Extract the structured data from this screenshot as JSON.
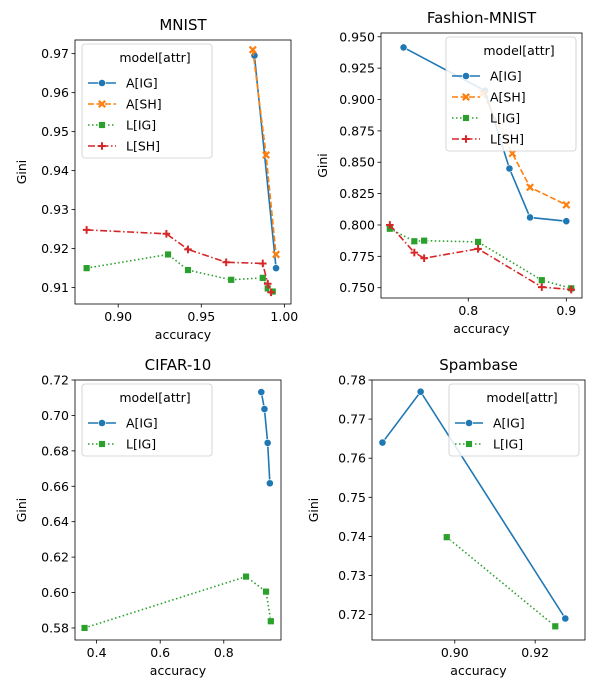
{
  "chart_data": [
    {
      "type": "line",
      "title": "MNIST",
      "xlabel": "accuracy",
      "ylabel": "Gini",
      "xlim": [
        0.874,
        1.004
      ],
      "ylim": [
        0.9058,
        0.9735
      ],
      "xticks": [
        0.9,
        0.95,
        1.0
      ],
      "xtick_labels": [
        "0.90",
        "0.95",
        "1.00"
      ],
      "yticks": [
        0.91,
        0.92,
        0.93,
        0.94,
        0.95,
        0.96,
        0.97
      ],
      "ytick_labels": [
        "0.91",
        "0.92",
        "0.93",
        "0.94",
        "0.95",
        "0.96",
        "0.97"
      ],
      "legend": {
        "title": "model[attr]",
        "position": "upper-left"
      },
      "series": [
        {
          "name": "A[IG]",
          "key": "AIG",
          "points": [
            [
              0.982,
              0.9695
            ],
            [
              0.995,
              0.915
            ]
          ]
        },
        {
          "name": "A[SH]",
          "key": "ASH",
          "points": [
            [
              0.981,
              0.971
            ],
            [
              0.989,
              0.944
            ],
            [
              0.995,
              0.9185
            ]
          ]
        },
        {
          "name": "L[IG]",
          "key": "LIG",
          "points": [
            [
              0.881,
              0.915
            ],
            [
              0.93,
              0.9185
            ],
            [
              0.942,
              0.9145
            ],
            [
              0.968,
              0.912
            ],
            [
              0.987,
              0.9125
            ],
            [
              0.99,
              0.9098
            ],
            [
              0.993,
              0.909
            ]
          ]
        },
        {
          "name": "L[SH]",
          "key": "LSH",
          "points": [
            [
              0.881,
              0.9248
            ],
            [
              0.929,
              0.9238
            ],
            [
              0.942,
              0.9198
            ],
            [
              0.965,
              0.9165
            ],
            [
              0.987,
              0.9162
            ],
            [
              0.99,
              0.911
            ],
            [
              0.992,
              0.9088
            ]
          ]
        }
      ]
    },
    {
      "type": "line",
      "title": "Fashion-MNIST",
      "xlabel": "accuracy",
      "ylabel": "Gini",
      "xlim": [
        0.711,
        0.916
      ],
      "ylim": [
        0.7418,
        0.953
      ],
      "xticks": [
        0.8,
        0.9
      ],
      "xtick_labels": [
        "0.8",
        "0.9"
      ],
      "yticks": [
        0.75,
        0.775,
        0.8,
        0.825,
        0.85,
        0.875,
        0.9,
        0.925,
        0.95
      ],
      "ytick_labels": [
        "0.750",
        "0.775",
        "0.800",
        "0.825",
        "0.850",
        "0.875",
        "0.900",
        "0.925",
        "0.950"
      ],
      "legend": {
        "title": "model[attr]",
        "position": "upper-right"
      },
      "series": [
        {
          "name": "A[IG]",
          "key": "AIG",
          "points": [
            [
              0.734,
              0.9415
            ],
            [
              0.817,
              0.907
            ],
            [
              0.842,
              0.845
            ],
            [
              0.863,
              0.806
            ],
            [
              0.9,
              0.803
            ]
          ]
        },
        {
          "name": "A[SH]",
          "key": "ASH",
          "points": [
            [
              0.815,
              0.905
            ],
            [
              0.845,
              0.857
            ],
            [
              0.863,
              0.83
            ],
            [
              0.9,
              0.816
            ]
          ]
        },
        {
          "name": "L[IG]",
          "key": "LIG",
          "points": [
            [
              0.72,
              0.797
            ],
            [
              0.745,
              0.787
            ],
            [
              0.755,
              0.7875
            ],
            [
              0.81,
              0.7865
            ],
            [
              0.875,
              0.756
            ],
            [
              0.905,
              0.7495
            ]
          ]
        },
        {
          "name": "L[SH]",
          "key": "LSH",
          "points": [
            [
              0.72,
              0.8
            ],
            [
              0.745,
              0.778
            ],
            [
              0.755,
              0.7735
            ],
            [
              0.81,
              0.781
            ],
            [
              0.875,
              0.7505
            ],
            [
              0.905,
              0.7485
            ]
          ]
        }
      ]
    },
    {
      "type": "line",
      "title": "CIFAR-10",
      "xlabel": "accuracy",
      "ylabel": "Gini",
      "xlim": [
        0.332,
        0.98
      ],
      "ylim": [
        0.5732,
        0.72
      ],
      "xticks": [
        0.4,
        0.6,
        0.8
      ],
      "xtick_labels": [
        "0.4",
        "0.6",
        "0.8"
      ],
      "yticks": [
        0.58,
        0.6,
        0.62,
        0.64,
        0.66,
        0.68,
        0.7,
        0.72
      ],
      "ytick_labels": [
        "0.58",
        "0.60",
        "0.62",
        "0.64",
        "0.66",
        "0.68",
        "0.70",
        "0.72"
      ],
      "legend": {
        "title": "model[attr]",
        "position": "upper-left"
      },
      "series": [
        {
          "name": "A[IG]",
          "key": "AIG",
          "points": [
            [
              0.918,
              0.7132
            ],
            [
              0.928,
              0.7036
            ],
            [
              0.938,
              0.6845
            ],
            [
              0.945,
              0.6617
            ]
          ]
        },
        {
          "name": "L[IG]",
          "key": "LIG",
          "points": [
            [
              0.362,
              0.58
            ],
            [
              0.87,
              0.609
            ],
            [
              0.933,
              0.6005
            ],
            [
              0.948,
              0.5838
            ]
          ]
        }
      ]
    },
    {
      "type": "line",
      "title": "Spambase",
      "xlabel": "accuracy",
      "ylabel": "Gini",
      "xlim": [
        0.8794,
        0.9324
      ],
      "ylim": [
        0.7135,
        0.78
      ],
      "xticks": [
        0.9,
        0.92
      ],
      "xtick_labels": [
        "0.90",
        "0.92"
      ],
      "yticks": [
        0.72,
        0.73,
        0.74,
        0.75,
        0.76,
        0.77,
        0.78
      ],
      "ytick_labels": [
        "0.72",
        "0.73",
        "0.74",
        "0.75",
        "0.76",
        "0.77",
        "0.78"
      ],
      "legend": {
        "title": "model[attr]",
        "position": "upper-right"
      },
      "series": [
        {
          "name": "A[IG]",
          "key": "AIG",
          "points": [
            [
              0.882,
              0.764
            ],
            [
              0.8915,
              0.777
            ],
            [
              0.9275,
              0.719
            ]
          ]
        },
        {
          "name": "L[IG]",
          "key": "LIG",
          "points": [
            [
              0.898,
              0.7398
            ],
            [
              0.925,
              0.717
            ]
          ]
        }
      ]
    }
  ],
  "styles": {
    "AIG": {
      "color": "#1f77b4",
      "dash": "",
      "marker": "circle"
    },
    "ASH": {
      "color": "#ff7f0e",
      "dash": "6,2.5",
      "marker": "x"
    },
    "LIG": {
      "color": "#2ca02c",
      "dash": "1.5,2.5",
      "marker": "square"
    },
    "LSH": {
      "color": "#d62728",
      "dash": "7,2.5,1.5,2.5",
      "marker": "plus"
    }
  }
}
